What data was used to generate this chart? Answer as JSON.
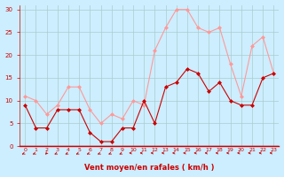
{
  "hours": [
    0,
    1,
    2,
    3,
    4,
    5,
    6,
    7,
    8,
    9,
    10,
    11,
    12,
    13,
    14,
    15,
    16,
    17,
    18,
    19,
    20,
    21,
    22,
    23
  ],
  "wind_avg": [
    9,
    4,
    4,
    8,
    8,
    8,
    3,
    1,
    1,
    4,
    4,
    10,
    5,
    13,
    14,
    17,
    16,
    12,
    14,
    10,
    9,
    9,
    15,
    16
  ],
  "wind_gust": [
    11,
    10,
    7,
    9,
    13,
    13,
    8,
    5,
    7,
    6,
    10,
    9,
    21,
    26,
    30,
    30,
    26,
    25,
    26,
    18,
    11,
    22,
    24,
    16
  ],
  "bg_color": "#cceeff",
  "grid_color": "#aacccc",
  "avg_color": "#cc0000",
  "gust_color": "#ff9999",
  "xlabel": "Vent moyen/en rafales ( km/h )",
  "xlabel_color": "#cc0000",
  "tick_color": "#cc0000",
  "spine_color": "#cc0000",
  "ylim": [
    0,
    31
  ],
  "yticks": [
    0,
    5,
    10,
    15,
    20,
    25,
    30
  ],
  "arrow_angles": [
    225,
    225,
    200,
    225,
    225,
    225,
    225,
    225,
    225,
    225,
    270,
    270,
    270,
    270,
    270,
    270,
    270,
    270,
    270,
    270,
    270,
    270,
    270,
    270
  ]
}
